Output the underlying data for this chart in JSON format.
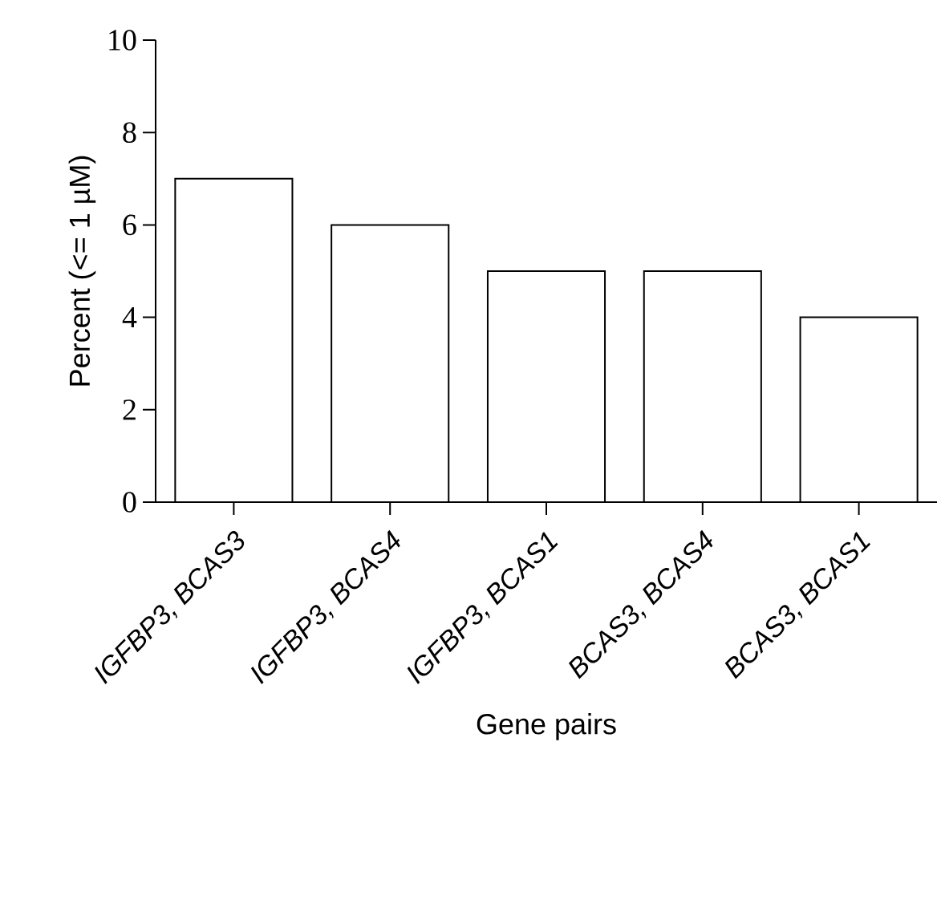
{
  "chart_data": {
    "type": "bar",
    "xlabel": "Gene pairs",
    "ylabel": "Percent (<= 1 µM)",
    "categories": [
      "IGFBP3, BCAS3",
      "IGFBP3, BCAS4",
      "IGFBP3, BCAS1",
      "BCAS3, BCAS4",
      "BCAS3, BCAS1"
    ],
    "values": [
      7,
      6,
      5,
      5,
      4
    ],
    "color": "#ffffff",
    "ylim": [
      0,
      10
    ],
    "yticks": [
      0,
      2,
      4,
      6,
      8,
      10
    ],
    "grid": false
  }
}
